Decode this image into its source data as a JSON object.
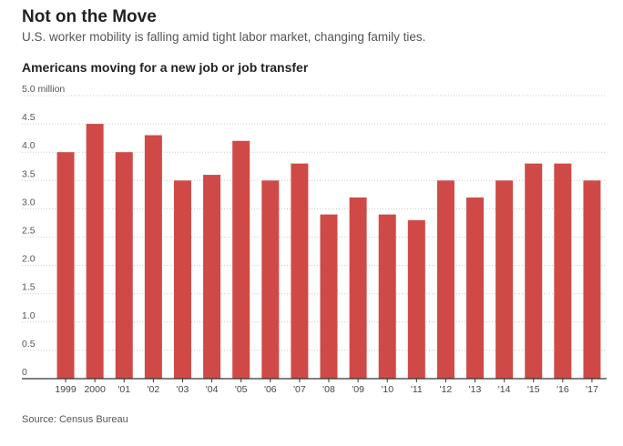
{
  "header": {
    "title": "Not on the Move",
    "subtitle": "U.S. worker mobility is falling amid tight labor market, changing family ties."
  },
  "chart_heading": "Americans moving for a new job or job transfer",
  "footer": {
    "source": "Source: Census Bureau"
  },
  "chart_data": {
    "type": "bar",
    "title": "Americans moving for a new job or job transfer",
    "xlabel": "",
    "ylabel": "",
    "ylim": [
      0,
      5
    ],
    "y_ticks": [
      "0",
      "0.5",
      "1.0",
      "1.5",
      "2.0",
      "2.5",
      "3.0",
      "3.5",
      "4.0",
      "4.5",
      "5.0 million"
    ],
    "categories": [
      "1999",
      "2000",
      "'01",
      "'02",
      "'03",
      "'04",
      "'05",
      "'06",
      "'07",
      "'08",
      "'09",
      "'10",
      "'11",
      "'12",
      "'13",
      "'14",
      "'15",
      "'16",
      "'17"
    ],
    "values": [
      4.0,
      4.5,
      4.0,
      4.3,
      3.5,
      3.6,
      4.2,
      3.5,
      3.8,
      2.9,
      3.2,
      2.9,
      2.8,
      3.5,
      3.2,
      3.5,
      3.8,
      3.8,
      3.5
    ],
    "grid": true,
    "colors": {
      "bar": "#cf4a46",
      "grid": "#cccccc",
      "axis": "#333333"
    }
  }
}
